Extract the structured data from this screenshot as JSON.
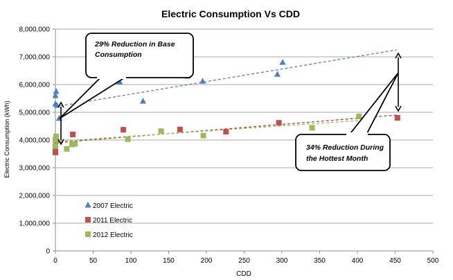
{
  "chart_data": {
    "type": "scatter",
    "title": "Electric Consumption Vs CDD",
    "xlabel": "CDD",
    "ylabel": "Electric Consumption (kWh)",
    "xlim": [
      0,
      500
    ],
    "ylim": [
      0,
      8000000
    ],
    "x_ticks": [
      "0",
      "50",
      "100",
      "150",
      "200",
      "250",
      "300",
      "350",
      "400",
      "450",
      "500"
    ],
    "y_ticks": [
      "0",
      "1,000,000",
      "2,000,000",
      "3,000,000",
      "4,000,000",
      "5,000,000",
      "6,000,000",
      "7,000,000",
      "8,000,000"
    ],
    "grid": "horizontal",
    "legend_position": "bottom-left",
    "series": [
      {
        "name": "2007 Electric",
        "marker": "triangle",
        "color": "#4f81bd",
        "points": [
          [
            0,
            5300000
          ],
          [
            0,
            5600000
          ],
          [
            1,
            5750000
          ],
          [
            2,
            5250000
          ],
          [
            5,
            4780000
          ],
          [
            85,
            6100000
          ],
          [
            116,
            5400000
          ],
          [
            175,
            6300000
          ],
          [
            195,
            6120000
          ],
          [
            294,
            6370000
          ],
          [
            301,
            6800000
          ]
        ],
        "trendline": [
          [
            0,
            5200000
          ],
          [
            452,
            7250000
          ]
        ]
      },
      {
        "name": "2011 Electric",
        "marker": "square",
        "color": "#c0504d",
        "points": [
          [
            0,
            3550000
          ],
          [
            0,
            3700000
          ],
          [
            1,
            3980000
          ],
          [
            23,
            4200000
          ],
          [
            90,
            4370000
          ],
          [
            165,
            4380000
          ],
          [
            226,
            4300000
          ],
          [
            296,
            4620000
          ],
          [
            453,
            4800000
          ]
        ],
        "trendline": [
          [
            0,
            3900000
          ],
          [
            452,
            4900000
          ]
        ]
      },
      {
        "name": "2012 Electric",
        "marker": "square",
        "color": "#9bbb59",
        "points": [
          [
            0,
            3780000
          ],
          [
            0,
            4000000
          ],
          [
            1,
            4130000
          ],
          [
            15,
            3680000
          ],
          [
            22,
            3840000
          ],
          [
            26,
            3860000
          ],
          [
            96,
            4030000
          ],
          [
            140,
            4320000
          ],
          [
            196,
            4160000
          ],
          [
            340,
            4440000
          ],
          [
            402,
            4850000
          ]
        ],
        "trendline": [
          [
            0,
            3950000
          ],
          [
            402,
            4700000
          ]
        ]
      }
    ],
    "annotations": [
      {
        "text": "29% Reduction in Base Consumption",
        "lines": [
          "29% Reduction in Base",
          "Consumption"
        ]
      },
      {
        "text": "34% Reduction During the Hottest Month",
        "lines": [
          "34% Reduction During",
          "the Hottest Month"
        ]
      }
    ]
  }
}
